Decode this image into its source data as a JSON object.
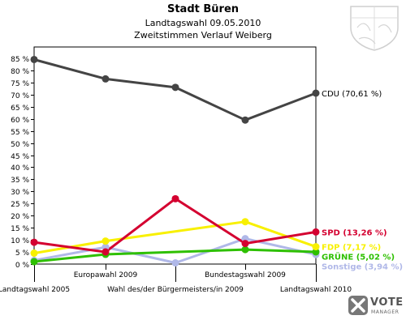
{
  "header": {
    "title": "Stadt Büren",
    "subtitle": "Landtagswahl 09.05.2010",
    "subtitle2": "Zweitstimmen Verlauf Weiberg"
  },
  "logo": {
    "word": "VOTE",
    "sub": "MANAGER"
  },
  "chart_data": {
    "type": "line",
    "title": "Stadt Büren",
    "subtitle": "Landtagswahl 09.05.2010 / Zweitstimmen Verlauf Weiberg",
    "x": [
      "Landtagswahl 2005",
      "Europawahl 2009",
      "Wahl des/der Bürgermeisters/in 2009",
      "Bundestagswahl 2009",
      "Landtagswahl 2010"
    ],
    "x_label_rows": [
      "bottom",
      "top",
      "bottom",
      "top",
      "bottom"
    ],
    "ylim": [
      0,
      85
    ],
    "yticks": [
      0,
      5,
      10,
      15,
      20,
      25,
      30,
      35,
      40,
      45,
      50,
      55,
      60,
      65,
      70,
      75,
      80,
      85
    ],
    "y_tick_suffix": " %",
    "grid": false,
    "series": [
      {
        "name": "CDU",
        "end_label": "CDU (70,61 %)",
        "color": "#444444",
        "values": [
          84.5,
          76.5,
          73,
          59.5,
          70.61
        ]
      },
      {
        "name": "SPD",
        "end_label": "SPD (13,26 %)",
        "color": "#d40030",
        "values": [
          9,
          5,
          27,
          8.5,
          13.26
        ]
      },
      {
        "name": "FDP",
        "end_label": "FDP (7,17 %)",
        "color": "#f8f000",
        "values": [
          4.5,
          9.5,
          null,
          17.5,
          7.17
        ]
      },
      {
        "name": "GRÜNE",
        "end_label": "GRÜNE (5,02 %)",
        "color": "#2ec000",
        "values": [
          1,
          4,
          null,
          6,
          5.02
        ]
      },
      {
        "name": "Sonstige",
        "end_label": "Sonstige (3,94 %)",
        "color": "#b0b8e8",
        "values": [
          1.5,
          7,
          0.5,
          10.5,
          3.94
        ]
      }
    ]
  }
}
